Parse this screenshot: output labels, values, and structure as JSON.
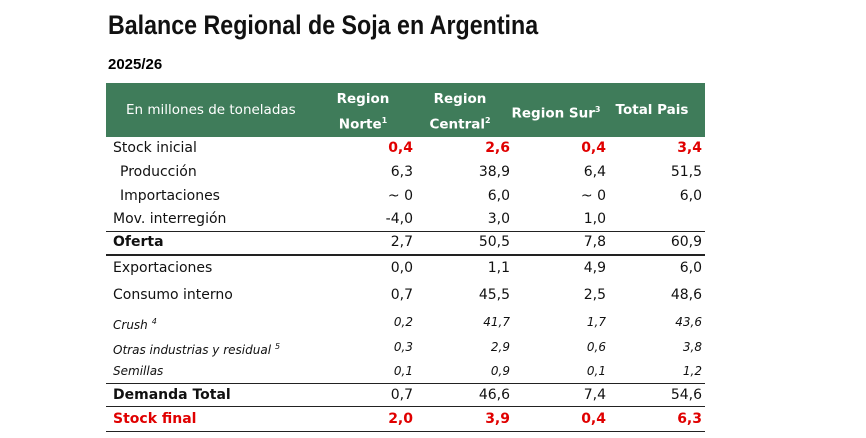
{
  "header": {
    "title": "Balance Regional de Soja en Argentina",
    "subtitle": "2025/26"
  },
  "table": {
    "label_header": "En millones de toneladas",
    "columns": [
      {
        "lines": [
          "Region",
          "Norte"
        ],
        "note": "1"
      },
      {
        "lines": [
          "Region",
          "Central"
        ],
        "note": "2"
      },
      {
        "lines": [
          "Region Sur"
        ],
        "note": "3"
      },
      {
        "lines": [
          "Total Pais"
        ]
      }
    ],
    "rows": [
      {
        "label": "Stock inicial",
        "values": [
          "0,4",
          "2,6",
          "0,4",
          "3,4"
        ]
      },
      {
        "label": "Producción",
        "values": [
          "6,3",
          "38,9",
          "6,4",
          "51,5"
        ]
      },
      {
        "label": "Importaciones",
        "values": [
          "~ 0",
          "6,0",
          "~ 0",
          "6,0"
        ]
      },
      {
        "label": "Mov. interregión",
        "values": [
          "-4,0",
          "3,0",
          "1,0",
          null
        ]
      },
      {
        "label": "Oferta",
        "values": [
          "2,7",
          "50,5",
          "7,8",
          "60,9"
        ]
      },
      {
        "label": "Exportaciones",
        "values": [
          "0,0",
          "1,1",
          "4,9",
          "6,0"
        ]
      },
      {
        "label": "Consumo interno",
        "values": [
          "0,7",
          "45,5",
          "2,5",
          "48,6"
        ]
      },
      {
        "label": "Crush",
        "note": "4",
        "values": [
          "0,2",
          "41,7",
          "1,7",
          "43,6"
        ]
      },
      {
        "label": "Otras industrias y residual",
        "note": "5",
        "values": [
          "0,3",
          "2,9",
          "0,6",
          "3,8"
        ]
      },
      {
        "label": "Semillas",
        "values": [
          "0,1",
          "0,9",
          "0,1",
          "1,2"
        ]
      },
      {
        "label": "Demanda Total",
        "values": [
          "0,7",
          "46,6",
          "7,4",
          "54,6"
        ]
      },
      {
        "label": "Stock final",
        "values": [
          "2,0",
          "3,9",
          "0,4",
          "6,3"
        ]
      }
    ]
  }
}
